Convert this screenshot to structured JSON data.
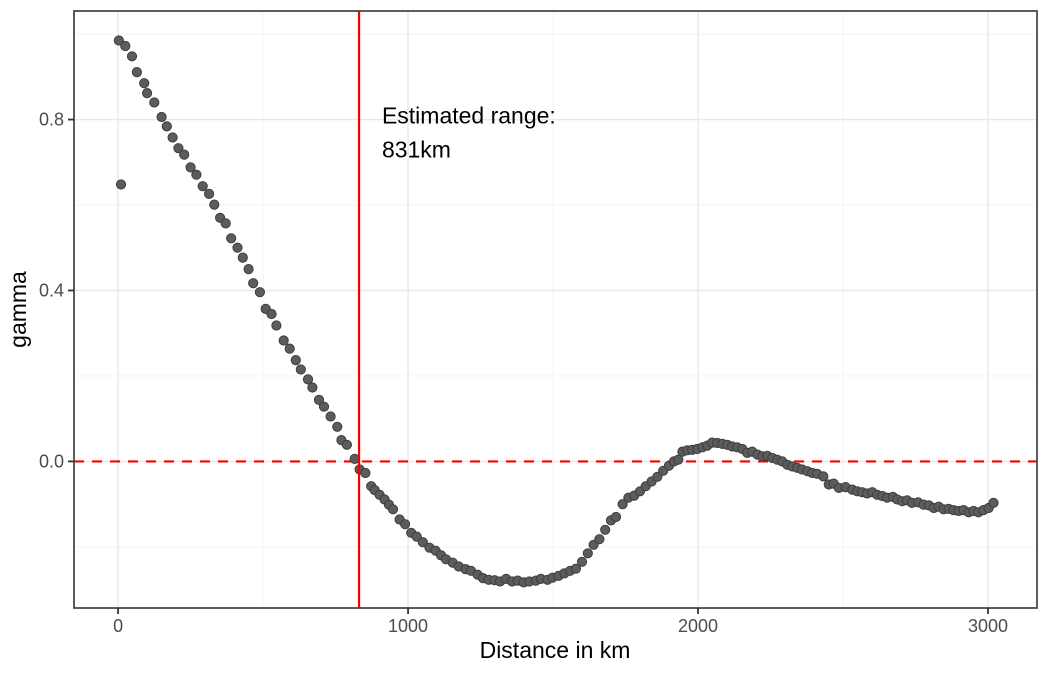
{
  "chart_data": {
    "type": "scatter",
    "title": "",
    "xlabel": "Distance in km",
    "ylabel": "gamma",
    "xlim": [
      -152,
      3169
    ],
    "ylim": [
      -0.343,
      1.054
    ],
    "grid": true,
    "legend": false,
    "x_major_ticks": [
      0,
      1000,
      2000,
      3000
    ],
    "x_tick_labels": [
      "0",
      "1000",
      "2000",
      "3000"
    ],
    "x_minor_gridlines": [
      500,
      1500,
      2500
    ],
    "y_major_ticks": [
      0.0,
      0.4,
      0.8
    ],
    "y_tick_labels": [
      "0.0",
      "0.4",
      "0.8"
    ],
    "y_minor_gridlines": [
      -0.2,
      0.2,
      0.6,
      1.0
    ],
    "reference_lines": {
      "vline": {
        "x": 831,
        "color": "#f40000",
        "style": "solid"
      },
      "hline": {
        "y": 0,
        "color": "#f40000",
        "style": "dashed"
      }
    },
    "annotation": {
      "line1": "Estimated range:",
      "line2": "831km",
      "x_data": 910,
      "y_data": 0.8
    },
    "point_style": {
      "fill": "#5c5c5c",
      "stroke": "#3e3e3e",
      "radius": 4.6
    },
    "colors": {
      "grid_major": "#e8e8e8",
      "grid_minor": "#f3f3f3",
      "panel_border": "#4a4a4a",
      "tick_mark": "#333333",
      "tick_text": "#4d4d4d"
    },
    "points": [
      [
        3,
        0.985
      ],
      [
        10,
        0.648
      ],
      [
        25,
        0.972
      ],
      [
        48,
        0.948
      ],
      [
        65,
        0.911
      ],
      [
        90,
        0.885
      ],
      [
        100,
        0.862
      ],
      [
        125,
        0.84
      ],
      [
        150,
        0.806
      ],
      [
        168,
        0.784
      ],
      [
        188,
        0.758
      ],
      [
        208,
        0.733
      ],
      [
        228,
        0.718
      ],
      [
        250,
        0.688
      ],
      [
        270,
        0.671
      ],
      [
        292,
        0.644
      ],
      [
        314,
        0.626
      ],
      [
        332,
        0.601
      ],
      [
        352,
        0.57
      ],
      [
        371,
        0.557
      ],
      [
        390,
        0.522
      ],
      [
        412,
        0.5
      ],
      [
        430,
        0.477
      ],
      [
        450,
        0.45
      ],
      [
        466,
        0.417
      ],
      [
        489,
        0.396
      ],
      [
        509,
        0.357
      ],
      [
        529,
        0.345
      ],
      [
        546,
        0.318
      ],
      [
        571,
        0.283
      ],
      [
        592,
        0.264
      ],
      [
        613,
        0.237
      ],
      [
        630,
        0.215
      ],
      [
        655,
        0.192
      ],
      [
        670,
        0.173
      ],
      [
        693,
        0.144
      ],
      [
        710,
        0.128
      ],
      [
        733,
        0.105
      ],
      [
        756,
        0.081
      ],
      [
        770,
        0.05
      ],
      [
        789,
        0.039
      ],
      [
        816,
        0.006
      ],
      [
        833,
        -0.019
      ],
      [
        853,
        -0.027
      ],
      [
        873,
        -0.058
      ],
      [
        885,
        -0.067
      ],
      [
        902,
        -0.078
      ],
      [
        919,
        -0.089
      ],
      [
        934,
        -0.101
      ],
      [
        948,
        -0.112
      ],
      [
        971,
        -0.136
      ],
      [
        990,
        -0.147
      ],
      [
        1011,
        -0.167
      ],
      [
        1030,
        -0.176
      ],
      [
        1051,
        -0.189
      ],
      [
        1074,
        -0.202
      ],
      [
        1095,
        -0.209
      ],
      [
        1114,
        -0.22
      ],
      [
        1131,
        -0.229
      ],
      [
        1154,
        -0.237
      ],
      [
        1175,
        -0.246
      ],
      [
        1198,
        -0.252
      ],
      [
        1217,
        -0.256
      ],
      [
        1240,
        -0.265
      ],
      [
        1258,
        -0.273
      ],
      [
        1278,
        -0.277
      ],
      [
        1298,
        -0.278
      ],
      [
        1317,
        -0.281
      ],
      [
        1338,
        -0.275
      ],
      [
        1359,
        -0.281
      ],
      [
        1378,
        -0.279
      ],
      [
        1399,
        -0.283
      ],
      [
        1418,
        -0.281
      ],
      [
        1441,
        -0.279
      ],
      [
        1458,
        -0.275
      ],
      [
        1481,
        -0.277
      ],
      [
        1498,
        -0.272
      ],
      [
        1519,
        -0.268
      ],
      [
        1539,
        -0.262
      ],
      [
        1559,
        -0.256
      ],
      [
        1579,
        -0.251
      ],
      [
        1600,
        -0.235
      ],
      [
        1620,
        -0.215
      ],
      [
        1640,
        -0.195
      ],
      [
        1660,
        -0.182
      ],
      [
        1680,
        -0.16
      ],
      [
        1700,
        -0.138
      ],
      [
        1717,
        -0.13
      ],
      [
        1740,
        -0.1
      ],
      [
        1760,
        -0.085
      ],
      [
        1780,
        -0.08
      ],
      [
        1800,
        -0.07
      ],
      [
        1820,
        -0.058
      ],
      [
        1840,
        -0.047
      ],
      [
        1860,
        -0.036
      ],
      [
        1880,
        -0.022
      ],
      [
        1900,
        -0.01
      ],
      [
        1917,
        0.0
      ],
      [
        1932,
        0.004
      ],
      [
        1946,
        0.023
      ],
      [
        1963,
        0.026
      ],
      [
        1980,
        0.027
      ],
      [
        1997,
        0.029
      ],
      [
        2015,
        0.033
      ],
      [
        2032,
        0.037
      ],
      [
        2049,
        0.044
      ],
      [
        2066,
        0.043
      ],
      [
        2084,
        0.041
      ],
      [
        2101,
        0.039
      ],
      [
        2118,
        0.035
      ],
      [
        2135,
        0.033
      ],
      [
        2153,
        0.029
      ],
      [
        2170,
        0.02
      ],
      [
        2187,
        0.023
      ],
      [
        2205,
        0.016
      ],
      [
        2222,
        0.012
      ],
      [
        2239,
        0.013
      ],
      [
        2256,
        0.008
      ],
      [
        2273,
        0.004
      ],
      [
        2290,
        0.0
      ],
      [
        2308,
        -0.008
      ],
      [
        2325,
        -0.012
      ],
      [
        2342,
        -0.015
      ],
      [
        2359,
        -0.019
      ],
      [
        2377,
        -0.023
      ],
      [
        2394,
        -0.027
      ],
      [
        2411,
        -0.029
      ],
      [
        2432,
        -0.035
      ],
      [
        2451,
        -0.054
      ],
      [
        2468,
        -0.052
      ],
      [
        2486,
        -0.062
      ],
      [
        2509,
        -0.06
      ],
      [
        2532,
        -0.066
      ],
      [
        2549,
        -0.07
      ],
      [
        2566,
        -0.072
      ],
      [
        2583,
        -0.075
      ],
      [
        2601,
        -0.072
      ],
      [
        2618,
        -0.078
      ],
      [
        2635,
        -0.081
      ],
      [
        2652,
        -0.085
      ],
      [
        2672,
        -0.083
      ],
      [
        2687,
        -0.089
      ],
      [
        2704,
        -0.093
      ],
      [
        2721,
        -0.091
      ],
      [
        2738,
        -0.097
      ],
      [
        2759,
        -0.096
      ],
      [
        2778,
        -0.101
      ],
      [
        2796,
        -0.103
      ],
      [
        2813,
        -0.109
      ],
      [
        2830,
        -0.106
      ],
      [
        2847,
        -0.112
      ],
      [
        2864,
        -0.111
      ],
      [
        2881,
        -0.114
      ],
      [
        2899,
        -0.116
      ],
      [
        2916,
        -0.114
      ],
      [
        2933,
        -0.119
      ],
      [
        2950,
        -0.116
      ],
      [
        2967,
        -0.119
      ],
      [
        2984,
        -0.114
      ],
      [
        3002,
        -0.109
      ],
      [
        3019,
        -0.097
      ]
    ]
  }
}
